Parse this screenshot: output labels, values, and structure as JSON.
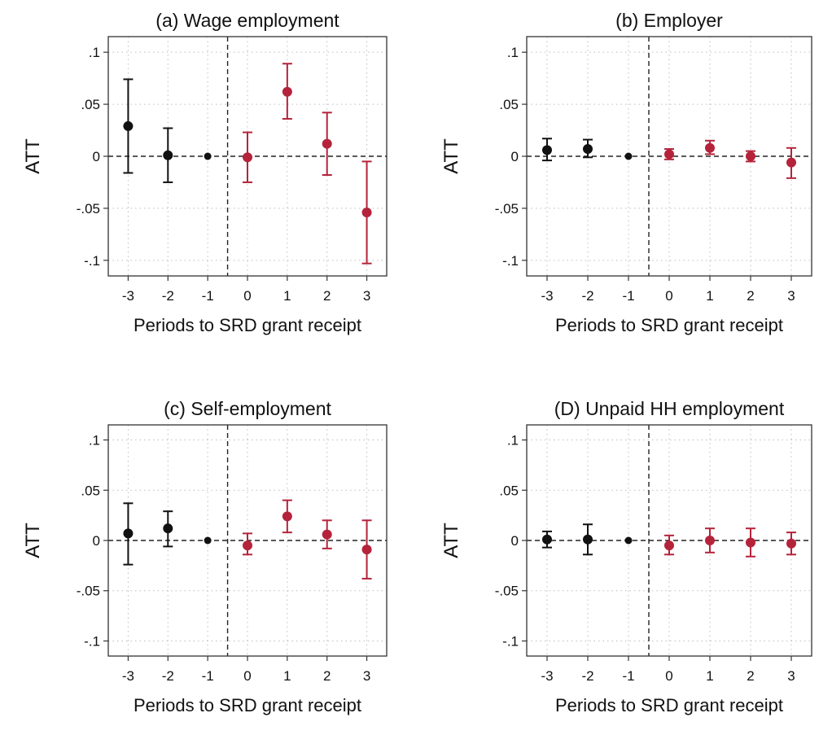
{
  "figure": {
    "colors": {
      "pre": "#111111",
      "post": "#b5233b",
      "grid": "#bdbdbd",
      "frame": "#333333"
    }
  },
  "chart_data": [
    {
      "type": "scatter",
      "panel": "a",
      "title": "(a) Wage employment",
      "xlabel": "Periods to SRD grant receipt",
      "ylabel": "ATT",
      "xticks": [
        "-3",
        "-2",
        "-1",
        "0",
        "1",
        "2",
        "3"
      ],
      "yticks": [
        ".1",
        ".05",
        "0",
        "-.05",
        "-.1"
      ],
      "xlim": [
        -3.5,
        3.5
      ],
      "ylim": [
        -0.115,
        0.115
      ],
      "reference_line": {
        "y": 0,
        "style": "dashed"
      },
      "event_line": {
        "x": -0.5,
        "style": "dashed"
      },
      "grid": true,
      "x": [
        -3,
        -2,
        -1,
        0,
        1,
        2,
        3
      ],
      "y": [
        0.029,
        0.001,
        0.0,
        -0.001,
        0.062,
        0.012,
        -0.054
      ],
      "ci_low": [
        -0.016,
        -0.025,
        null,
        -0.025,
        0.036,
        -0.018,
        -0.103
      ],
      "ci_high": [
        0.074,
        0.027,
        null,
        0.023,
        0.089,
        0.042,
        -0.005
      ],
      "group": [
        "pre",
        "pre",
        "pre",
        "post",
        "post",
        "post",
        "post"
      ]
    },
    {
      "type": "scatter",
      "panel": "b",
      "title": "(b) Employer",
      "xlabel": "Periods to SRD grant receipt",
      "ylabel": "ATT",
      "xticks": [
        "-3",
        "-2",
        "-1",
        "0",
        "1",
        "2",
        "3"
      ],
      "yticks": [
        ".1",
        ".05",
        "0",
        "-.05",
        "-.1"
      ],
      "xlim": [
        -3.5,
        3.5
      ],
      "ylim": [
        -0.115,
        0.115
      ],
      "reference_line": {
        "y": 0,
        "style": "dashed"
      },
      "event_line": {
        "x": -0.5,
        "style": "dashed"
      },
      "grid": true,
      "x": [
        -3,
        -2,
        -1,
        0,
        1,
        2,
        3
      ],
      "y": [
        0.006,
        0.007,
        0.0,
        0.002,
        0.008,
        0.0,
        -0.006
      ],
      "ci_low": [
        -0.004,
        -0.001,
        null,
        -0.003,
        0.002,
        -0.005,
        -0.021
      ],
      "ci_high": [
        0.017,
        0.016,
        null,
        0.007,
        0.015,
        0.005,
        0.008
      ],
      "group": [
        "pre",
        "pre",
        "pre",
        "post",
        "post",
        "post",
        "post"
      ]
    },
    {
      "type": "scatter",
      "panel": "c",
      "title": "(c) Self-employment",
      "xlabel": "Periods to SRD grant receipt",
      "ylabel": "ATT",
      "xticks": [
        "-3",
        "-2",
        "-1",
        "0",
        "1",
        "2",
        "3"
      ],
      "yticks": [
        ".1",
        ".05",
        "0",
        "-.05",
        "-.1"
      ],
      "xlim": [
        -3.5,
        3.5
      ],
      "ylim": [
        -0.115,
        0.115
      ],
      "reference_line": {
        "y": 0,
        "style": "dashed"
      },
      "event_line": {
        "x": -0.5,
        "style": "dashed"
      },
      "grid": true,
      "x": [
        -3,
        -2,
        -1,
        0,
        1,
        2,
        3
      ],
      "y": [
        0.007,
        0.012,
        0.0,
        -0.005,
        0.024,
        0.006,
        -0.009
      ],
      "ci_low": [
        -0.024,
        -0.006,
        null,
        -0.014,
        0.008,
        -0.008,
        -0.038
      ],
      "ci_high": [
        0.037,
        0.029,
        null,
        0.007,
        0.04,
        0.02,
        0.02
      ],
      "group": [
        "pre",
        "pre",
        "pre",
        "post",
        "post",
        "post",
        "post"
      ]
    },
    {
      "type": "scatter",
      "panel": "d",
      "title": "(D) Unpaid HH employment",
      "xlabel": "Periods to SRD grant receipt",
      "ylabel": "ATT",
      "xticks": [
        "-3",
        "-2",
        "-1",
        "0",
        "1",
        "2",
        "3"
      ],
      "yticks": [
        ".1",
        ".05",
        "0",
        "-.05",
        "-.1"
      ],
      "xlim": [
        -3.5,
        3.5
      ],
      "ylim": [
        -0.115,
        0.115
      ],
      "reference_line": {
        "y": 0,
        "style": "dashed"
      },
      "event_line": {
        "x": -0.5,
        "style": "dashed"
      },
      "grid": true,
      "x": [
        -3,
        -2,
        -1,
        0,
        1,
        2,
        3
      ],
      "y": [
        0.001,
        0.001,
        0.0,
        -0.005,
        0.0,
        -0.002,
        -0.003
      ],
      "ci_low": [
        -0.007,
        -0.014,
        null,
        -0.014,
        -0.012,
        -0.016,
        -0.014
      ],
      "ci_high": [
        0.009,
        0.016,
        null,
        0.005,
        0.012,
        0.012,
        0.008
      ],
      "group": [
        "pre",
        "pre",
        "pre",
        "post",
        "post",
        "post",
        "post"
      ]
    }
  ]
}
